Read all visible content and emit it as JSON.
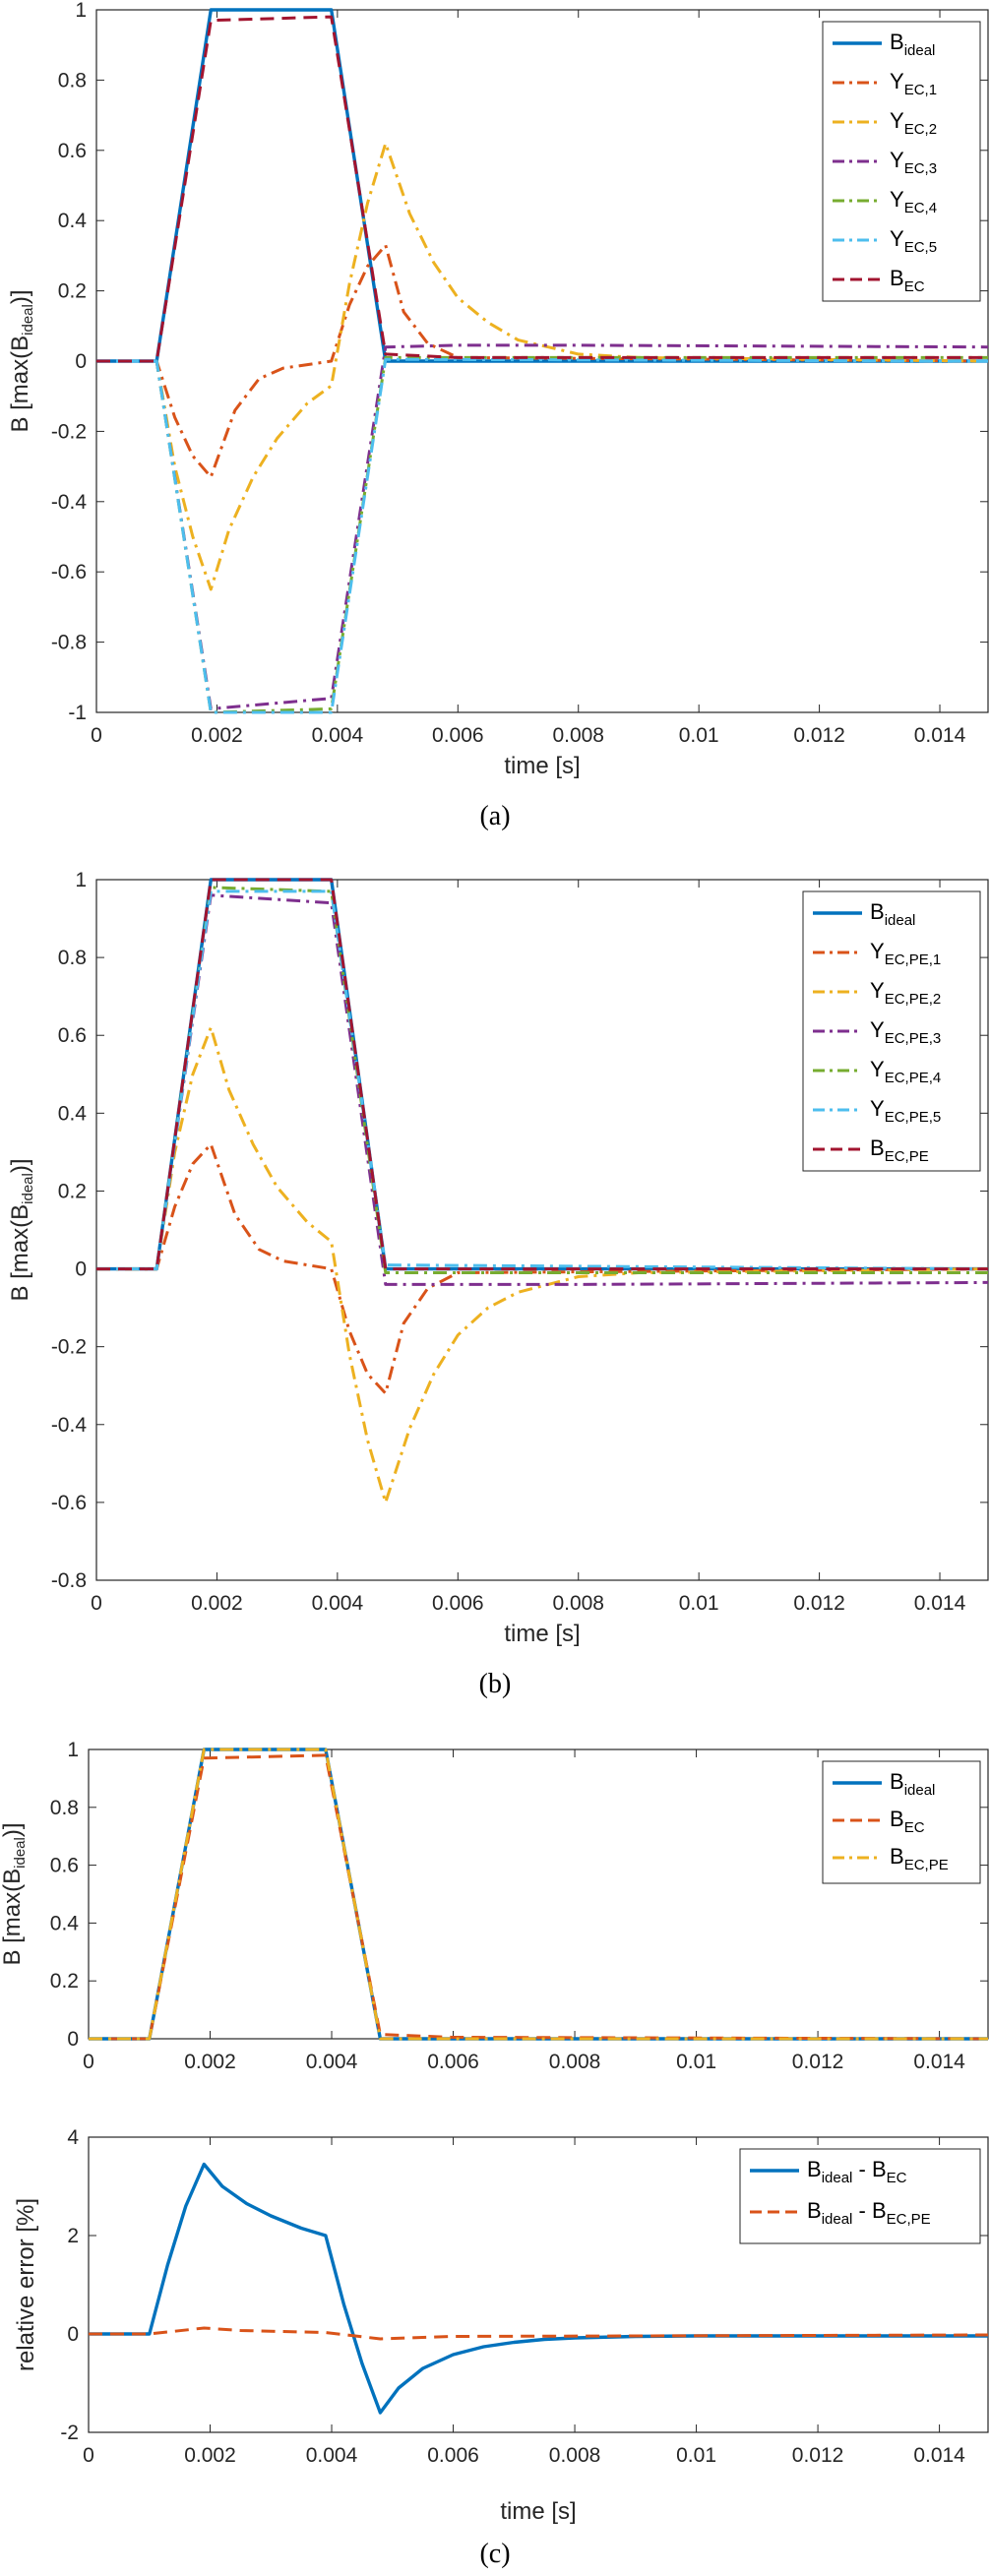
{
  "colors": {
    "blue": "#0072BD",
    "orange": "#D95319",
    "yellow": "#EDB120",
    "purple": "#7E2F8E",
    "green": "#77AC30",
    "cyan": "#4DBEEE",
    "darkred": "#A2142F"
  },
  "chart_data": [
    {
      "type": "line",
      "caption": "(a)",
      "xlabel": "time [s]",
      "ylabel": "B [max(B_ideal)]",
      "xlim": [
        0,
        0.0148
      ],
      "ylim": [
        -1,
        1
      ],
      "xticks": [
        0,
        0.002,
        0.004,
        0.006,
        0.008,
        0.01,
        0.012,
        0.014
      ],
      "xticklabels": [
        "0",
        "0.002",
        "0.004",
        "0.006",
        "0.008",
        "0.01",
        "0.012",
        "0.014"
      ],
      "yticks": [
        -1,
        -0.8,
        -0.6,
        -0.4,
        -0.2,
        0,
        0.2,
        0.4,
        0.6,
        0.8,
        1
      ],
      "yticklabels": [
        "-1",
        "-0.8",
        "-0.6",
        "-0.4",
        "-0.2",
        "0",
        "0.2",
        "0.4",
        "0.6",
        "0.8",
        "1"
      ],
      "legend_position": "top-right",
      "series": [
        {
          "name": "B_ideal",
          "color": "blue",
          "dash": "solid",
          "x": [
            0,
            0.001,
            0.0019,
            0.0039,
            0.0048,
            0.0148
          ],
          "y": [
            0,
            0,
            1,
            1,
            0,
            0
          ]
        },
        {
          "name": "Y_EC,1",
          "color": "orange",
          "dash": "dashdot",
          "x": [
            0,
            0.001,
            0.0013,
            0.0016,
            0.0019,
            0.0023,
            0.0027,
            0.0031,
            0.0035,
            0.0039,
            0.0042,
            0.0045,
            0.0048,
            0.0051,
            0.0055,
            0.006,
            0.0148
          ],
          "y": [
            0,
            0,
            -0.16,
            -0.27,
            -0.33,
            -0.14,
            -0.05,
            -0.02,
            -0.01,
            0,
            0.16,
            0.27,
            0.33,
            0.14,
            0.05,
            0.01,
            0
          ]
        },
        {
          "name": "Y_EC,2",
          "color": "yellow",
          "dash": "dashdot",
          "x": [
            0,
            0.001,
            0.0013,
            0.0016,
            0.0019,
            0.0022,
            0.0026,
            0.003,
            0.0035,
            0.0039,
            0.0042,
            0.0045,
            0.0048,
            0.0052,
            0.0056,
            0.006,
            0.0065,
            0.007,
            0.0075,
            0.008,
            0.009,
            0.0148
          ],
          "y": [
            0,
            0,
            -0.3,
            -0.5,
            -0.65,
            -0.48,
            -0.33,
            -0.22,
            -0.12,
            -0.07,
            0.22,
            0.45,
            0.62,
            0.42,
            0.28,
            0.18,
            0.11,
            0.06,
            0.04,
            0.02,
            0.01,
            0
          ]
        },
        {
          "name": "Y_EC,3",
          "color": "purple",
          "dash": "dashdot",
          "x": [
            0,
            0.001,
            0.0019,
            0.0039,
            0.0048,
            0.006,
            0.008,
            0.0148
          ],
          "y": [
            0,
            0,
            -0.99,
            -0.96,
            0.04,
            0.045,
            0.045,
            0.04
          ]
        },
        {
          "name": "Y_EC,4",
          "color": "green",
          "dash": "dashdot",
          "x": [
            0,
            0.001,
            0.0019,
            0.0039,
            0.0048,
            0.0148
          ],
          "y": [
            0,
            0,
            -1,
            -0.99,
            0.01,
            0.01
          ]
        },
        {
          "name": "Y_EC,5",
          "color": "cyan",
          "dash": "dashdot",
          "x": [
            0,
            0.001,
            0.0019,
            0.0039,
            0.0048,
            0.0148
          ],
          "y": [
            0,
            0,
            -1,
            -1,
            0.005,
            0
          ]
        },
        {
          "name": "B_EC",
          "color": "darkred",
          "dash": "dash",
          "x": [
            0,
            0.001,
            0.0019,
            0.0039,
            0.0048,
            0.006,
            0.0148
          ],
          "y": [
            0,
            0,
            0.97,
            0.98,
            0.02,
            0.01,
            0.01
          ]
        }
      ]
    },
    {
      "type": "line",
      "caption": "(b)",
      "xlabel": "time [s]",
      "ylabel": "B [max(B_ideal)]",
      "xlim": [
        0,
        0.0148
      ],
      "ylim": [
        -0.8,
        1
      ],
      "xticks": [
        0,
        0.002,
        0.004,
        0.006,
        0.008,
        0.01,
        0.012,
        0.014
      ],
      "xticklabels": [
        "0",
        "0.002",
        "0.004",
        "0.006",
        "0.008",
        "0.01",
        "0.012",
        "0.014"
      ],
      "yticks": [
        -0.8,
        -0.6,
        -0.4,
        -0.2,
        0,
        0.2,
        0.4,
        0.6,
        0.8,
        1
      ],
      "yticklabels": [
        "-0.8",
        "-0.6",
        "-0.4",
        "-0.2",
        "0",
        "0.2",
        "0.4",
        "0.6",
        "0.8",
        "1"
      ],
      "legend_position": "top-right",
      "series": [
        {
          "name": "B_ideal",
          "color": "blue",
          "dash": "solid",
          "x": [
            0,
            0.001,
            0.0019,
            0.0039,
            0.0048,
            0.0148
          ],
          "y": [
            0,
            0,
            1,
            1,
            0,
            0
          ]
        },
        {
          "name": "Y_EC,PE,1",
          "color": "orange",
          "dash": "dashdot",
          "x": [
            0,
            0.001,
            0.0013,
            0.0016,
            0.0019,
            0.0023,
            0.0027,
            0.0031,
            0.0035,
            0.0039,
            0.0042,
            0.0045,
            0.0048,
            0.0051,
            0.0055,
            0.006,
            0.0148
          ],
          "y": [
            0,
            0,
            0.16,
            0.27,
            0.32,
            0.14,
            0.05,
            0.02,
            0.01,
            0,
            -0.16,
            -0.27,
            -0.32,
            -0.14,
            -0.05,
            -0.01,
            0
          ]
        },
        {
          "name": "Y_EC,PE,2",
          "color": "yellow",
          "dash": "dashdot",
          "x": [
            0,
            0.001,
            0.0013,
            0.0016,
            0.0019,
            0.0022,
            0.0026,
            0.003,
            0.0035,
            0.0039,
            0.0042,
            0.0045,
            0.0048,
            0.0052,
            0.0056,
            0.006,
            0.0065,
            0.007,
            0.0075,
            0.008,
            0.009,
            0.0148
          ],
          "y": [
            0,
            0,
            0.3,
            0.5,
            0.62,
            0.46,
            0.32,
            0.21,
            0.12,
            0.07,
            -0.22,
            -0.44,
            -0.6,
            -0.41,
            -0.27,
            -0.17,
            -0.1,
            -0.06,
            -0.04,
            -0.02,
            -0.01,
            0
          ]
        },
        {
          "name": "Y_EC,PE,3",
          "color": "purple",
          "dash": "dashdot",
          "x": [
            0,
            0.001,
            0.0019,
            0.0039,
            0.0048,
            0.006,
            0.008,
            0.0148
          ],
          "y": [
            0,
            0,
            0.96,
            0.94,
            -0.04,
            -0.04,
            -0.04,
            -0.035
          ]
        },
        {
          "name": "Y_EC,PE,4",
          "color": "green",
          "dash": "dashdot",
          "x": [
            0,
            0.001,
            0.0019,
            0.0039,
            0.0048,
            0.0148
          ],
          "y": [
            0,
            0,
            0.98,
            0.97,
            -0.01,
            -0.01
          ]
        },
        {
          "name": "Y_EC,PE,5",
          "color": "cyan",
          "dash": "dashdot",
          "x": [
            0,
            0.001,
            0.0019,
            0.0039,
            0.0048,
            0.0148
          ],
          "y": [
            0,
            0,
            0.97,
            0.97,
            0.01,
            0
          ]
        },
        {
          "name": "B_EC,PE",
          "color": "darkred",
          "dash": "dash",
          "x": [
            0,
            0.001,
            0.0019,
            0.0039,
            0.0048,
            0.0148
          ],
          "y": [
            0,
            0,
            1,
            1,
            0,
            0
          ]
        }
      ]
    },
    {
      "type": "line",
      "xlabel": "",
      "ylabel": "B [max(B_ideal)]",
      "xlim": [
        0,
        0.0148
      ],
      "ylim": [
        0,
        1
      ],
      "xticks": [
        0,
        0.002,
        0.004,
        0.006,
        0.008,
        0.01,
        0.012,
        0.014
      ],
      "xticklabels": [
        "0",
        "0.002",
        "0.004",
        "0.006",
        "0.008",
        "0.01",
        "0.012",
        "0.014"
      ],
      "yticks": [
        0,
        0.2,
        0.4,
        0.6,
        0.8,
        1
      ],
      "yticklabels": [
        "0",
        "0.2",
        "0.4",
        "0.6",
        "0.8",
        "1"
      ],
      "legend_position": "top-right",
      "series": [
        {
          "name": "B_ideal",
          "color": "blue",
          "dash": "solid",
          "x": [
            0,
            0.001,
            0.0019,
            0.0039,
            0.0048,
            0.0148
          ],
          "y": [
            0,
            0,
            1,
            1,
            0,
            0
          ]
        },
        {
          "name": "B_EC",
          "color": "orange",
          "dash": "dash",
          "x": [
            0,
            0.001,
            0.0019,
            0.0039,
            0.0048,
            0.006,
            0.0148
          ],
          "y": [
            0,
            0,
            0.97,
            0.98,
            0.015,
            0.005,
            0
          ]
        },
        {
          "name": "B_EC,PE",
          "color": "yellow",
          "dash": "dashdot",
          "x": [
            0,
            0.001,
            0.0019,
            0.0039,
            0.0048,
            0.0148
          ],
          "y": [
            0,
            0,
            1,
            1,
            0,
            0
          ]
        }
      ]
    },
    {
      "type": "line",
      "caption": "(c)",
      "xlabel": "time [s]",
      "ylabel": "relative error [%]",
      "xlim": [
        0,
        0.0148
      ],
      "ylim": [
        -2,
        4
      ],
      "xticks": [
        0,
        0.002,
        0.004,
        0.006,
        0.008,
        0.01,
        0.012,
        0.014
      ],
      "xticklabels": [
        "0",
        "0.002",
        "0.004",
        "0.006",
        "0.008",
        "0.01",
        "0.012",
        "0.014"
      ],
      "yticks": [
        -2,
        0,
        2,
        4
      ],
      "yticklabels": [
        "-2",
        "0",
        "2",
        "4"
      ],
      "legend_position": "top-right",
      "series": [
        {
          "name": "B_ideal - B_EC",
          "color": "blue",
          "dash": "solid",
          "x": [
            0,
            0.001,
            0.0013,
            0.0016,
            0.0019,
            0.0022,
            0.0026,
            0.003,
            0.0035,
            0.0039,
            0.0042,
            0.0045,
            0.0048,
            0.0051,
            0.0055,
            0.006,
            0.0065,
            0.007,
            0.0075,
            0.008,
            0.009,
            0.01,
            0.0148
          ],
          "y": [
            0,
            0,
            1.4,
            2.6,
            3.45,
            3.0,
            2.65,
            2.4,
            2.15,
            2.0,
            0.6,
            -0.6,
            -1.6,
            -1.1,
            -0.7,
            -0.42,
            -0.26,
            -0.17,
            -0.11,
            -0.08,
            -0.05,
            -0.04,
            -0.04
          ]
        },
        {
          "name": "B_ideal - B_EC,PE",
          "color": "orange",
          "dash": "dash",
          "x": [
            0,
            0.001,
            0.0019,
            0.0025,
            0.0039,
            0.0048,
            0.006,
            0.0148
          ],
          "y": [
            0,
            0,
            0.12,
            0.07,
            0.03,
            -0.1,
            -0.05,
            -0.02
          ]
        }
      ]
    }
  ]
}
